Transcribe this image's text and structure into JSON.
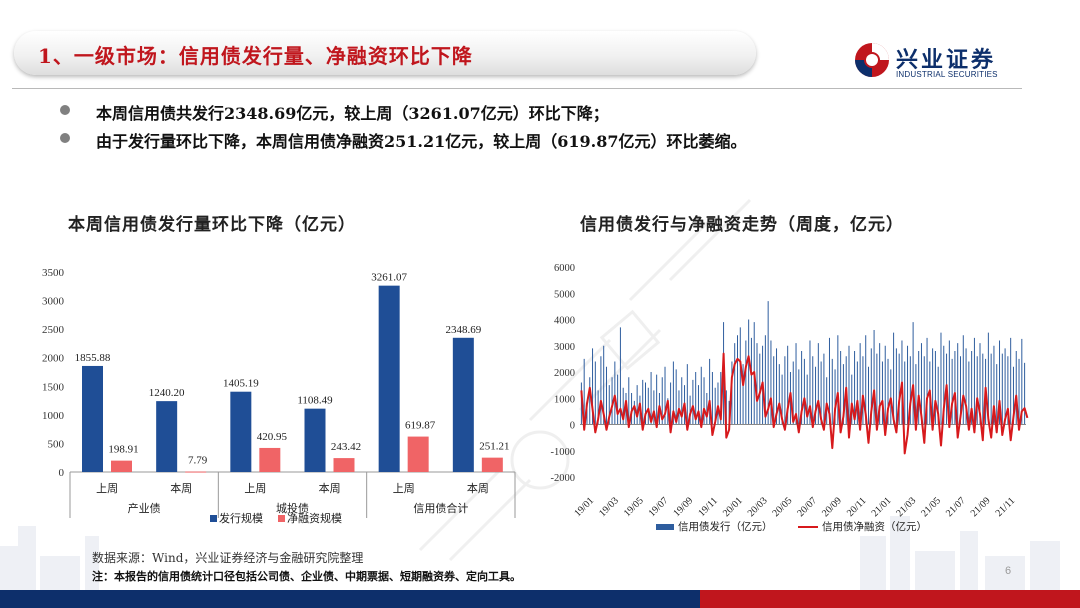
{
  "header": {
    "title": "1、一级市场：信用债发行量、净融资环比下降",
    "logo_cn": "兴业证券",
    "logo_en": "INDUSTRIAL SECURITIES"
  },
  "bullets": [
    "本周信用债共发行2348.69亿元，较上周（3261.07亿元）环比下降；",
    "由于发行量环比下降，本周信用债净融资251.21亿元，较上周（619.87亿元）环比萎缩。"
  ],
  "footer": {
    "source": "数据来源：Wind，兴业证券经济与金融研究院整理",
    "note": "注：本报告的信用债统计口径包括公司债、企业债、中期票据、短期融资券、定向工具。",
    "page": "6"
  },
  "colors": {
    "brand_red": "#c0161d",
    "brand_navy": "#0d2f6b",
    "bar_blue": "#1f4e96",
    "bar_pink": "#f06466",
    "line_red": "#d7191c",
    "issuance_blue": "#2e5d9e"
  },
  "chart_data": [
    {
      "type": "bar",
      "title": "本周信用债发行量环比下降（亿元）",
      "categories": [
        "上周",
        "本周",
        "上周",
        "本周",
        "上周",
        "本周"
      ],
      "groups": [
        "产业债",
        "城投债",
        "信用债合计"
      ],
      "series": [
        {
          "name": "发行规模",
          "values": [
            1855.88,
            1240.2,
            1405.19,
            1108.49,
            3261.07,
            2348.69
          ]
        },
        {
          "name": "净融资规模",
          "values": [
            198.91,
            7.79,
            420.95,
            243.42,
            619.87,
            251.21
          ]
        }
      ],
      "value_labels": [
        [
          "1855.88",
          "1240.20",
          "1405.19",
          "1108.49",
          "3261.07",
          "2348.69"
        ],
        [
          "198.91",
          "7.79",
          "420.95",
          "243.42",
          "619.87",
          "251.21"
        ]
      ],
      "ylim": [
        0,
        3500
      ],
      "yticks": [
        "0",
        "500",
        "1000",
        "1500",
        "2000",
        "2500",
        "3000",
        "3500"
      ],
      "legend_position": "bottom",
      "grid": false
    },
    {
      "type": "bar+line",
      "title": "信用债发行与净融资走势（周度，亿元）",
      "ylim": [
        -2000,
        6000
      ],
      "yticks": [
        "-2000",
        "-1000",
        "0",
        "1000",
        "2000",
        "3000",
        "4000",
        "5000",
        "6000"
      ],
      "x_tick_labels": [
        "19/01",
        "19/03",
        "19/05",
        "19/07",
        "19/09",
        "19/11",
        "20/01",
        "20/03",
        "20/05",
        "20/07",
        "20/09",
        "20/11",
        "21/01",
        "21/03",
        "21/05",
        "21/07",
        "21/09",
        "21/11"
      ],
      "legend_position": "bottom",
      "grid": false,
      "series": [
        {
          "name": "信用债发行（亿元）",
          "kind": "bar",
          "values": [
            1600,
            2500,
            900,
            1800,
            2900,
            2400,
            1300,
            2600,
            3000,
            2200,
            1500,
            1800,
            2400,
            1900,
            3700,
            1400,
            1200,
            1800,
            1200,
            900,
            1500,
            1100,
            1700,
            1600,
            1400,
            2000,
            1300,
            1900,
            1200,
            1800,
            2200,
            1000,
            1600,
            2400,
            2100,
            1300,
            1800,
            1500,
            2300,
            1100,
            1700,
            2000,
            1500,
            2200,
            1800,
            1200,
            2500,
            2000,
            1400,
            1600,
            2000,
            3900,
            1300,
            900,
            2400,
            3100,
            3400,
            3700,
            2300,
            3200,
            4000,
            3300,
            3900,
            3100,
            2700,
            3000,
            3400,
            4700,
            3200,
            2600,
            2900,
            2300,
            1900,
            2600,
            3000,
            2000,
            2400,
            3100,
            2100,
            2800,
            2500,
            1900,
            3200,
            2600,
            2200,
            3100,
            2400,
            2700,
            1800,
            3300,
            2500,
            2100,
            3400,
            2800,
            2300,
            2600,
            3000,
            1900,
            2800,
            2400,
            3100,
            2600,
            3400,
            2200,
            2900,
            3600,
            2700,
            3100,
            2400,
            3000,
            2500,
            2100,
            3500,
            2900,
            2700,
            3200,
            2400,
            3000,
            2600,
            3900,
            2300,
            2800,
            3100,
            2600,
            3300,
            2400,
            2900,
            2800,
            2200,
            3500,
            3000,
            2700,
            3200,
            2500,
            2800,
            3100,
            2600,
            3400,
            2900,
            2400,
            2800,
            3300,
            2600,
            3100,
            2700,
            2500,
            3500,
            2700,
            3000,
            2300,
            3200,
            2700,
            2900,
            2600,
            3300,
            2200,
            2800,
            2500,
            3261,
            2349
          ]
        },
        {
          "name": "信用债净融资（亿元）",
          "kind": "line",
          "values": [
            1300,
            -200,
            800,
            1400,
            600,
            -300,
            200,
            900,
            400,
            -200,
            300,
            700,
            1100,
            400,
            600,
            200,
            900,
            -100,
            500,
            700,
            300,
            800,
            -200,
            400,
            600,
            100,
            500,
            -100,
            700,
            200,
            400,
            900,
            -300,
            500,
            100,
            600,
            300,
            800,
            -200,
            400,
            700,
            200,
            500,
            -100,
            600,
            300,
            900,
            -400,
            100,
            700,
            200,
            2700,
            -500,
            -200,
            1800,
            2300,
            2500,
            2400,
            1500,
            2200,
            2600,
            1900,
            2000,
            900,
            1200,
            1600,
            300,
            600,
            1000,
            -100,
            400,
            800,
            200,
            -200,
            600,
            1200,
            100,
            400,
            -300,
            500,
            1000,
            300,
            700,
            -100,
            500,
            900,
            200,
            -200,
            800,
            400,
            -900,
            600,
            1200,
            -300,
            300,
            1400,
            -500,
            800,
            200,
            900,
            -200,
            1100,
            400,
            -700,
            500,
            1300,
            -200,
            700,
            900,
            -400,
            600,
            1000,
            200,
            -300,
            900,
            1600,
            -1100,
            -400,
            800,
            1500,
            -200,
            1100,
            300,
            -700,
            1000,
            1300,
            -200,
            900,
            400,
            -800,
            600,
            1500,
            -100,
            800,
            1200,
            -500,
            300,
            1100,
            700,
            -200,
            600,
            -300,
            1000,
            400,
            -600,
            1400,
            200,
            -500,
            700,
            -300,
            900,
            -400,
            200,
            600,
            -600,
            300,
            1100,
            -200,
            500,
            620,
            251
          ]
        }
      ]
    }
  ]
}
